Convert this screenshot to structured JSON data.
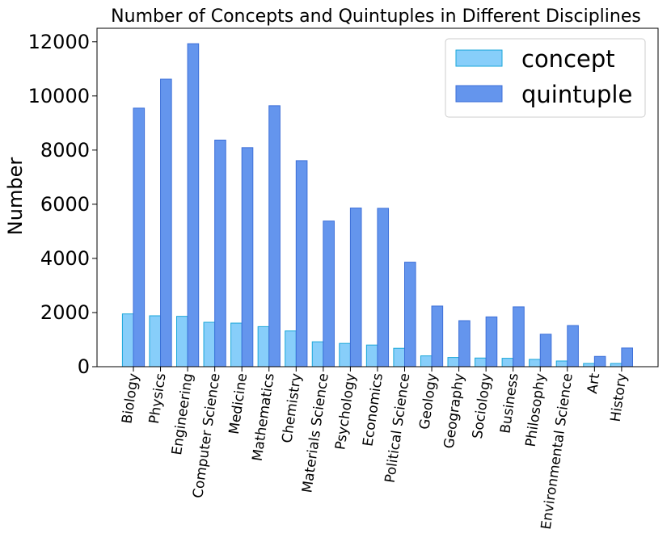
{
  "chart_data": {
    "type": "bar",
    "title": "Number of Concepts and Quintuples in Different Disciplines",
    "xlabel": "",
    "ylabel": "Number",
    "ylim": [
      0,
      12500
    ],
    "yticks": [
      0,
      2000,
      4000,
      6000,
      8000,
      10000,
      12000
    ],
    "yticklabels": [
      "0",
      "2000",
      "4000",
      "6000",
      "8000",
      "10000",
      "12000"
    ],
    "grid": false,
    "legend_position": "top-right",
    "categories": [
      "Biology",
      "Physics",
      "Engineering",
      "Computer Science",
      "Medicine",
      "Mathematics",
      "Chemistry",
      "Materials Science",
      "Psychology",
      "Economics",
      "Political Science",
      "Geology",
      "Geography",
      "Sociology",
      "Business",
      "Philosophy",
      "Environmental Science",
      "Art",
      "History"
    ],
    "series": [
      {
        "name": "concept",
        "color": "#87CEFA",
        "edge": "#1AA7D9",
        "values": [
          1950,
          1880,
          1860,
          1640,
          1610,
          1480,
          1320,
          920,
          860,
          800,
          680,
          400,
          340,
          320,
          310,
          270,
          210,
          120,
          120
        ]
      },
      {
        "name": "quintuple",
        "color": "#6495ED",
        "edge": "#3C6FD8",
        "values": [
          9550,
          10620,
          11930,
          8370,
          8090,
          9640,
          7610,
          5380,
          5860,
          5850,
          3860,
          2240,
          1700,
          1840,
          2210,
          1200,
          1520,
          380,
          690
        ]
      }
    ]
  }
}
